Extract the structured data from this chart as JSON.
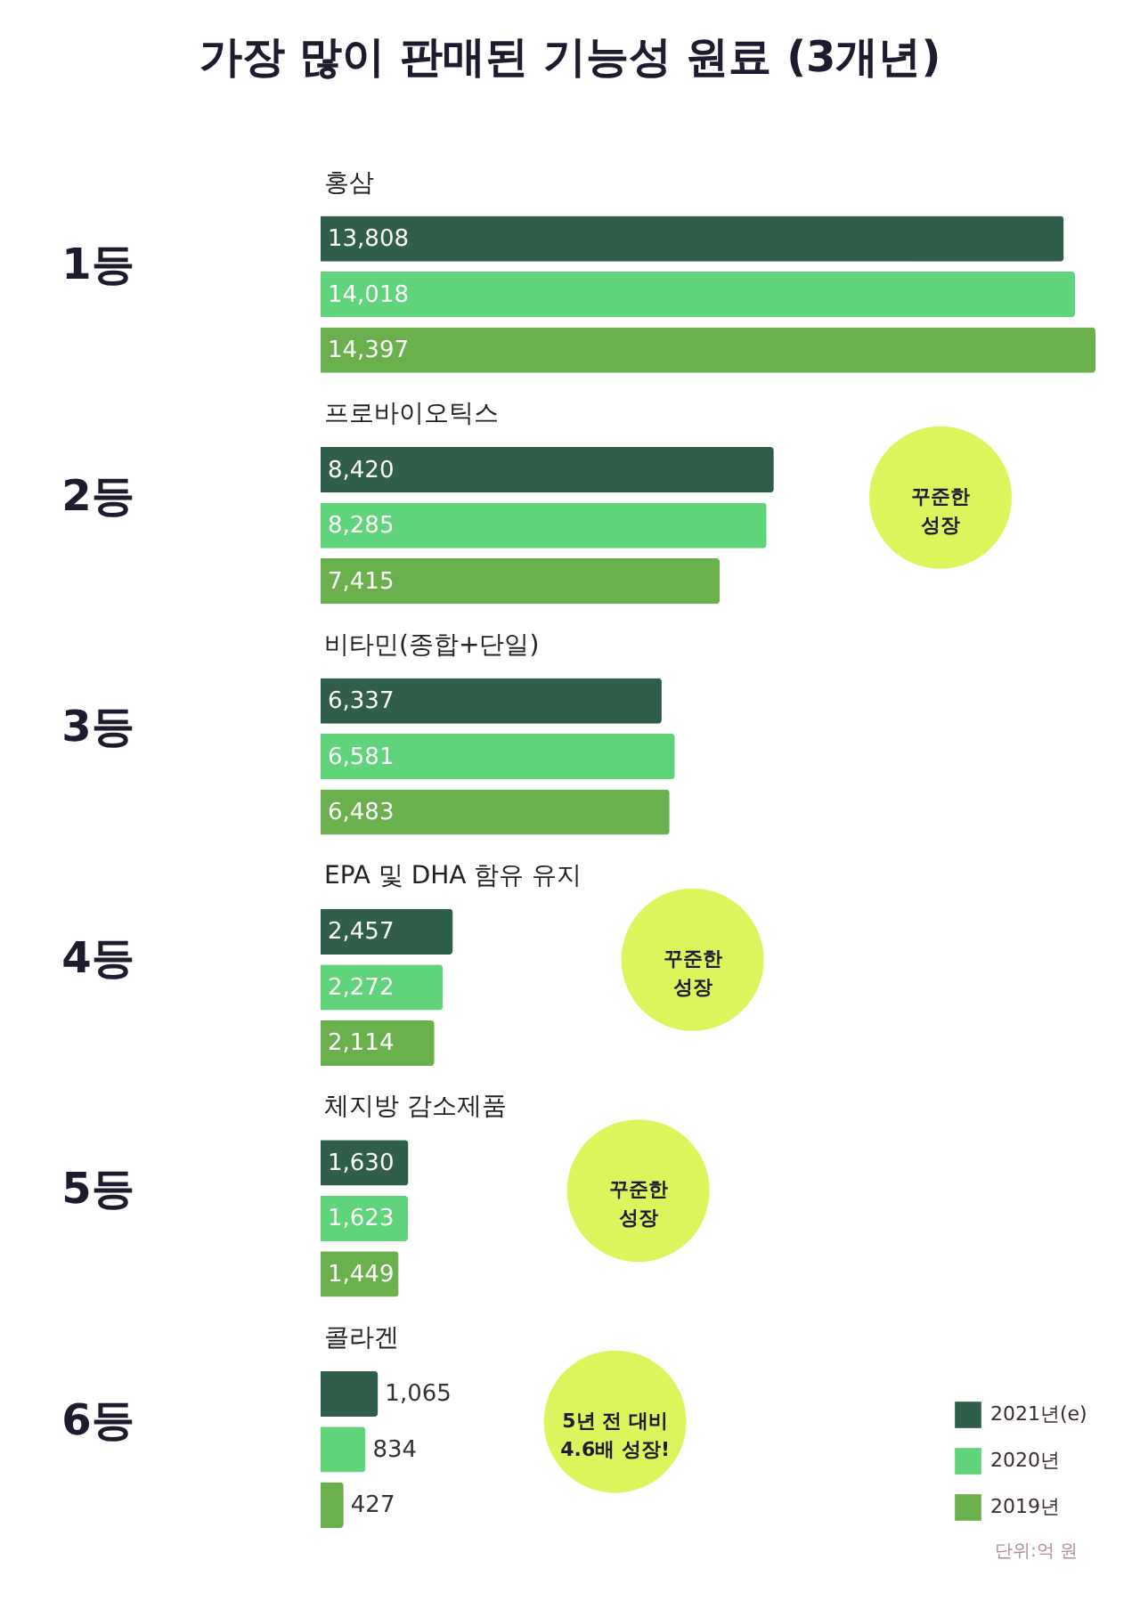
{
  "chart_data": {
    "type": "bar",
    "orientation": "horizontal",
    "title": "가장 많이 판매된 기능성 원료 (3개년)",
    "categories": [
      "홍삼",
      "프로바이오틱스",
      "비타민(종합+단일)",
      "EPA 및 DHA 함유 유지",
      "체지방 감소제품",
      "콜라겐"
    ],
    "series": [
      {
        "name": "2021년(e)",
        "color": "#2f5f4b",
        "values": [
          13808,
          8420,
          6337,
          2457,
          1630,
          1065
        ],
        "value_labels": [
          "13,808",
          "8,420",
          "6,337",
          "2,457",
          "1,630",
          "1,065"
        ]
      },
      {
        "name": "2020년",
        "color": "#5fd47a",
        "values": [
          14018,
          8285,
          6581,
          2272,
          1623,
          834
        ],
        "value_labels": [
          "14,018",
          "8,285",
          "6,581",
          "2,272",
          "1,623",
          "834"
        ]
      },
      {
        "name": "2019년",
        "color": "#6ab04c",
        "values": [
          14397,
          7415,
          6483,
          2114,
          1449,
          427
        ],
        "value_labels": [
          "14,397",
          "7,415",
          "6,483",
          "2,114",
          "1,449",
          "427"
        ]
      }
    ],
    "legend": "bottom right",
    "annotations": [
      "1등",
      "2등",
      "3등",
      "4등",
      "5등",
      "6등",
      "꾸준한\n성장",
      "꾸준한\n성장",
      "꾸준한\n성장",
      "5년 전 대비\n4.6배 성장!",
      "단위:억 원"
    ]
  }
}
